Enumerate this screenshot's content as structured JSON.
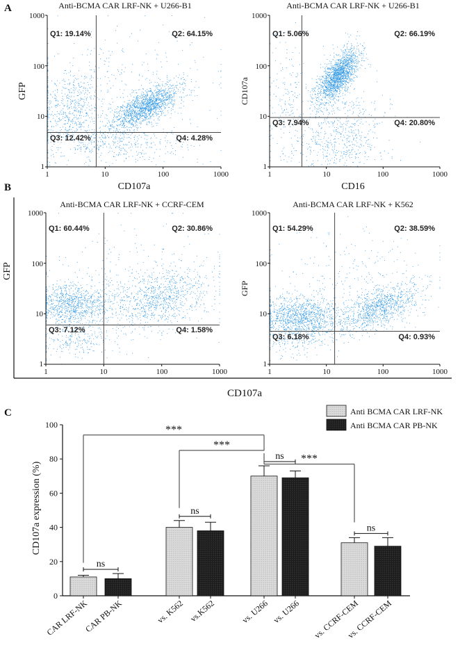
{
  "panels": {
    "a": "A",
    "b": "B",
    "c": "C"
  },
  "flow_common": {
    "ticks": [
      "1",
      "10",
      "100",
      "1000"
    ],
    "dot_color": "#3399e6",
    "gate_color": "#444444"
  },
  "shared_xlabel_b": "CD107a",
  "chart_data": [
    {
      "type": "scatter",
      "title": "Anti-BCMA CAR LRF-NK + U266-B1",
      "xlabel": "CD107a",
      "ylabel": "GFP",
      "xlim": [
        1,
        1000
      ],
      "ylim": [
        1,
        1000
      ],
      "scale": "log",
      "gate": {
        "x": 7,
        "y": 4.8
      },
      "quadrants": {
        "q1": "Q1: 19.14%",
        "q2": "Q2: 64.15%",
        "q3": "Q3: 12.42%",
        "q4": "Q4: 4.28%"
      },
      "populations": [
        {
          "n": 1500,
          "lx": [
            1.7,
            0.28
          ],
          "ly": [
            1.2,
            0.22
          ],
          "corr": 0.7
        },
        {
          "n": 550,
          "lx": [
            0.4,
            0.28
          ],
          "ly": [
            1.1,
            0.4
          ],
          "corr": 0.1
        },
        {
          "n": 350,
          "lx": [
            1.2,
            0.6
          ],
          "ly": [
            0.45,
            0.18
          ],
          "corr": 0
        },
        {
          "n": 400,
          "lx": [
            1.3,
            0.8
          ],
          "ly": [
            1.4,
            0.7
          ],
          "corr": 0
        }
      ],
      "seed": 11
    },
    {
      "type": "scatter",
      "title": "Anti-BCMA CAR LRF-NK + U266-B1",
      "xlabel": "CD16",
      "ylabel": "CD107a",
      "xlim": [
        1,
        1000
      ],
      "ylim": [
        1,
        1000
      ],
      "scale": "log",
      "gate": {
        "x": 3.7,
        "y": 9.5
      },
      "quadrants": {
        "q1": "Q1: 5.06%",
        "q2": "Q2: 66.19%",
        "q3": "Q3: 7.94%",
        "q4": "Q4: 20.80%"
      },
      "populations": [
        {
          "n": 1700,
          "lx": [
            1.2,
            0.18
          ],
          "ly": [
            1.8,
            0.25
          ],
          "corr": 0.65
        },
        {
          "n": 500,
          "lx": [
            1.25,
            0.35
          ],
          "ly": [
            0.6,
            0.4
          ],
          "corr": 0
        },
        {
          "n": 150,
          "lx": [
            0.3,
            0.15
          ],
          "ly": [
            1.2,
            0.7
          ],
          "corr": 0
        },
        {
          "n": 200,
          "lx": [
            1.0,
            0.6
          ],
          "ly": [
            0.8,
            0.7
          ],
          "corr": 0
        }
      ],
      "seed": 23
    },
    {
      "type": "scatter",
      "title": "Anti-BCMA CAR LRF-NK + CCRF-CEM",
      "xlabel": "",
      "ylabel": "GFP",
      "xlim": [
        1,
        1000
      ],
      "ylim": [
        1,
        1000
      ],
      "scale": "log",
      "gate": {
        "x": 10,
        "y": 6
      },
      "quadrants": {
        "q1": "Q1: 60.44%",
        "q2": "Q2: 30.86%",
        "q3": "Q3: 7.12%",
        "q4": "Q4: 1.58%"
      },
      "populations": [
        {
          "n": 900,
          "lx": [
            0.45,
            0.3
          ],
          "ly": [
            1.2,
            0.2
          ],
          "corr": 0
        },
        {
          "n": 900,
          "lx": [
            1.9,
            0.45
          ],
          "ly": [
            1.3,
            0.3
          ],
          "corr": 0.3
        },
        {
          "n": 250,
          "lx": [
            0.5,
            0.3
          ],
          "ly": [
            0.5,
            0.2
          ],
          "corr": 0
        },
        {
          "n": 250,
          "lx": [
            1.5,
            0.8
          ],
          "ly": [
            1.6,
            0.6
          ],
          "corr": 0
        }
      ],
      "seed": 37
    },
    {
      "type": "scatter",
      "title": "Anti-BCMA CAR LRF-NK + K562",
      "xlabel": "",
      "ylabel": "GFP",
      "xlim": [
        1,
        1000
      ],
      "ylim": [
        1,
        1000
      ],
      "scale": "log",
      "gate": {
        "x": 14,
        "y": 4.5
      },
      "quadrants": {
        "q1": "Q1: 54.29%",
        "q2": "Q2: 38.59%",
        "q3": "Q3: 6.18%",
        "q4": "Q4: 0.93%"
      },
      "populations": [
        {
          "n": 1100,
          "lx": [
            0.55,
            0.35
          ],
          "ly": [
            0.95,
            0.2
          ],
          "corr": 0
        },
        {
          "n": 1000,
          "lx": [
            1.9,
            0.35
          ],
          "ly": [
            1.1,
            0.25
          ],
          "corr": 0.6
        },
        {
          "n": 200,
          "lx": [
            0.5,
            0.3
          ],
          "ly": [
            0.55,
            0.2
          ],
          "corr": 0
        },
        {
          "n": 250,
          "lx": [
            1.5,
            0.8
          ],
          "ly": [
            1.7,
            0.5
          ],
          "corr": 0
        }
      ],
      "seed": 51
    },
    {
      "type": "bar",
      "ylabel": "CD107a expression (%)",
      "ylim": [
        0,
        100
      ],
      "yticks": [
        "0",
        "20",
        "40",
        "60",
        "80",
        "100"
      ],
      "categories": [
        "CAR LRF-NK",
        "CAR PB-NK",
        "vs. K562",
        "vs.K562",
        "vs. U266",
        "vs. U266",
        "vs. CCRF-CEM",
        "vs. CCRF-CEM"
      ],
      "series_names": [
        "Anti BCMA CAR LRF-NK",
        "Anti BCMA CAR PB-NK"
      ],
      "values": [
        11,
        10,
        40,
        38,
        70,
        69,
        31,
        29
      ],
      "errors": [
        1,
        3,
        4,
        5,
        6,
        4,
        3,
        5
      ],
      "bar_series": [
        0,
        1,
        0,
        1,
        0,
        1,
        0,
        1
      ],
      "colors": {
        "light": "#d8d8d8",
        "dark": "#1a1a1a"
      },
      "ns_label": "ns",
      "ns_pairs": [
        [
          0,
          1
        ],
        [
          2,
          3
        ],
        [
          4,
          5
        ],
        [
          6,
          7
        ]
      ],
      "sig_label": "***",
      "sig_brackets": [
        {
          "from": 0,
          "to": 4,
          "level": 94
        },
        {
          "from": 2,
          "to": 4,
          "level": 85
        },
        {
          "from": 4,
          "to": 6,
          "level": 77
        }
      ]
    }
  ]
}
